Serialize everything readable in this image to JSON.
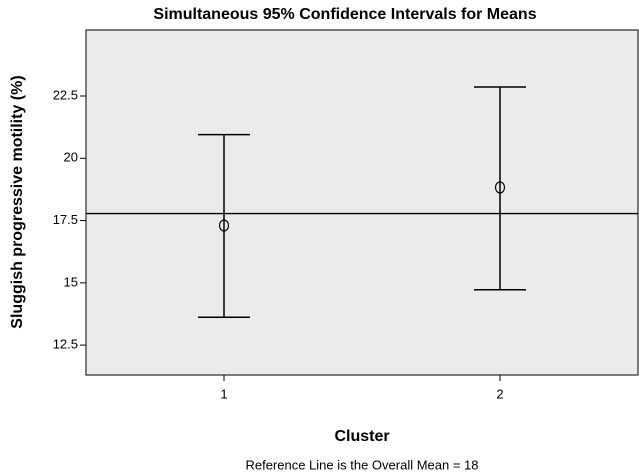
{
  "chart_data": {
    "type": "errorbar",
    "title": "Simultaneous 95% Confidence Intervals for Means",
    "x_label": "Cluster",
    "y_label": "Sluggish progressive motility (%)",
    "footnote": "Reference Line is the Overall Mean = 18",
    "categories": [
      "1",
      "2"
    ],
    "values": [
      17.3,
      18.83
    ],
    "lower": [
      13.62,
      14.72
    ],
    "upper": [
      20.95,
      22.86
    ],
    "reference_line": 17.78,
    "color": "#000000",
    "ylim": [
      11.3,
      25.15
    ],
    "yticks": [
      12.5,
      15,
      17.5,
      20,
      22.5
    ]
  }
}
